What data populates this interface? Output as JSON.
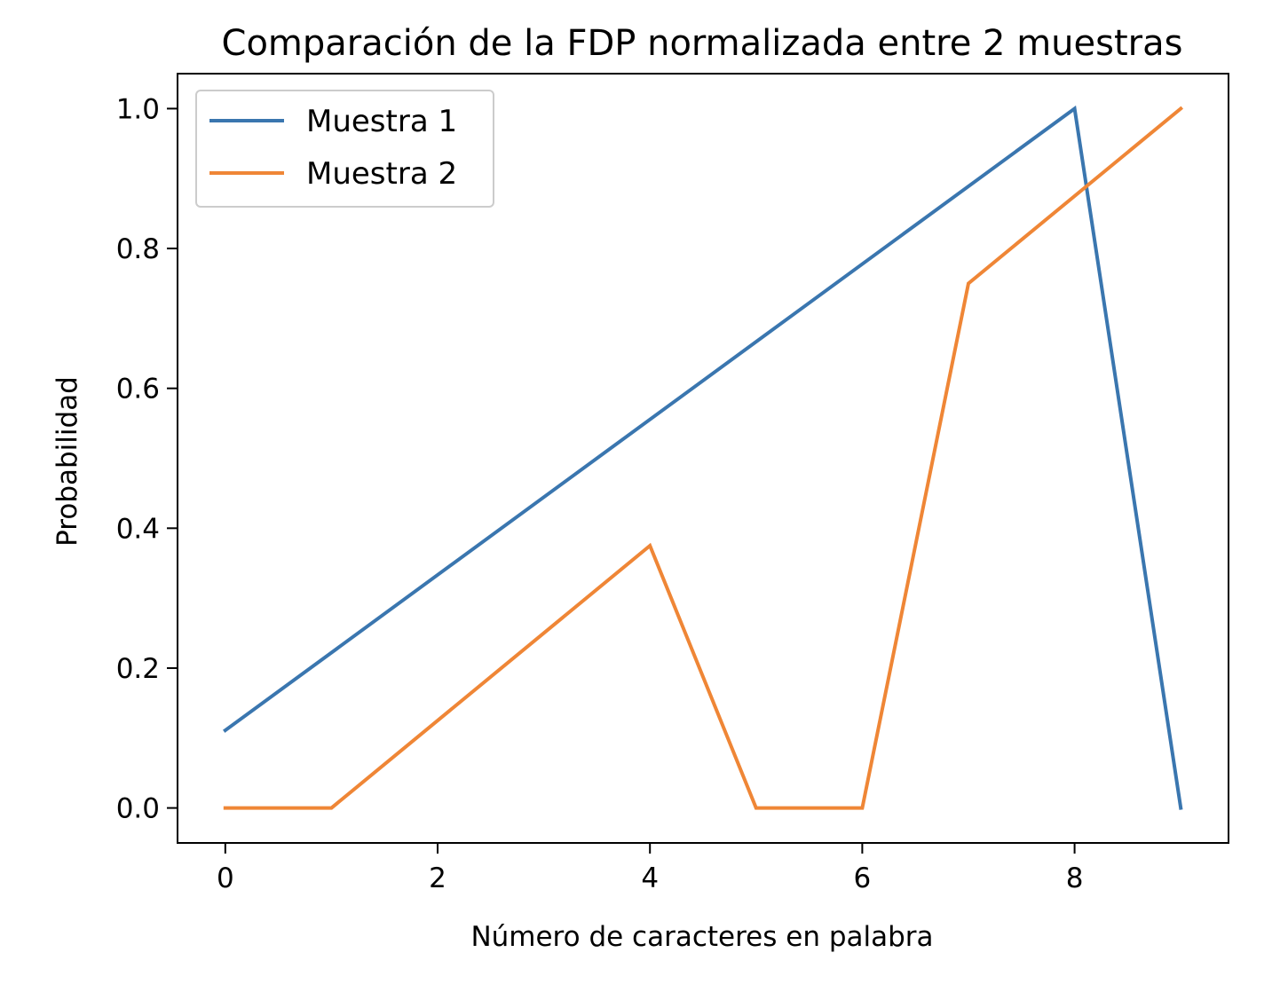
{
  "chart_data": {
    "type": "line",
    "title": "Comparación de la FDP normalizada entre 2 muestras",
    "xlabel": "Número de caracteres en palabra",
    "ylabel": "Probabilidad",
    "xlim": [
      -0.45,
      9.45
    ],
    "ylim": [
      -0.05,
      1.05
    ],
    "xticks": [
      0,
      2,
      4,
      6,
      8
    ],
    "yticks": [
      0.0,
      0.2,
      0.4,
      0.6,
      0.8,
      1.0
    ],
    "xtick_labels": [
      "0",
      "2",
      "4",
      "6",
      "8"
    ],
    "ytick_labels": [
      "0.0",
      "0.2",
      "0.4",
      "0.6",
      "0.8",
      "1.0"
    ],
    "grid": false,
    "legend_position": "top-left",
    "series": [
      {
        "name": "Muestra 1",
        "color": "#3a76af",
        "x": [
          0,
          8,
          9
        ],
        "values": [
          0.111,
          1.0,
          0.0
        ]
      },
      {
        "name": "Muestra 2",
        "color": "#ef8636",
        "x": [
          0,
          1,
          4,
          5,
          6,
          7,
          9
        ],
        "values": [
          0.0,
          0.0,
          0.375,
          0.0,
          0.0,
          0.75,
          1.0
        ]
      }
    ]
  }
}
